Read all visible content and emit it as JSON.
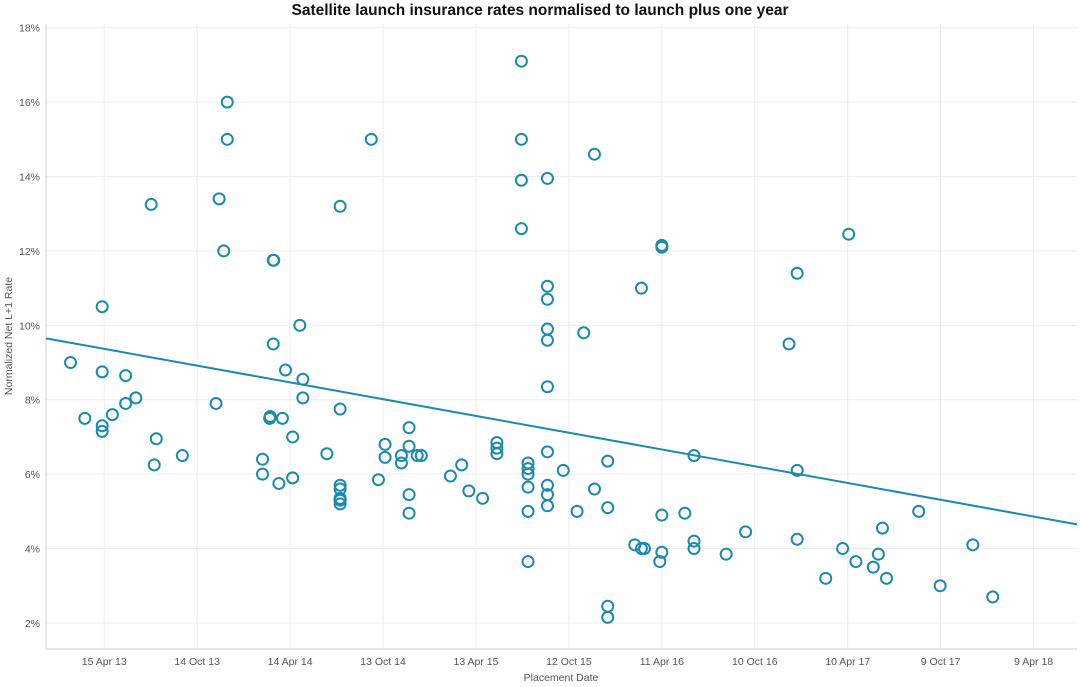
{
  "chart_data": {
    "type": "scatter",
    "title": "Satellite launch insurance rates normalised to launch plus one year",
    "xlabel": "Placement Date",
    "ylabel": "Normalized Net L+1 Rate",
    "x_unit": "days since 15 Apr 13",
    "xlim": [
      -114,
      1905
    ],
    "ylim": [
      1.3,
      18.1
    ],
    "x_ticks": [
      {
        "label": "15 Apr 13",
        "value": 0
      },
      {
        "label": "14 Oct 13",
        "value": 182
      },
      {
        "label": "14 Apr 14",
        "value": 364
      },
      {
        "label": "13 Oct 14",
        "value": 546
      },
      {
        "label": "13 Apr 15",
        "value": 728
      },
      {
        "label": "12 Oct 15",
        "value": 910
      },
      {
        "label": "11 Apr 16",
        "value": 1092
      },
      {
        "label": "10 Oct 16",
        "value": 1274
      },
      {
        "label": "10 Apr 17",
        "value": 1456
      },
      {
        "label": "9 Oct 17",
        "value": 1638
      },
      {
        "label": "9 Apr 18",
        "value": 1820
      }
    ],
    "y_ticks": [
      {
        "label": "2%",
        "value": 2
      },
      {
        "label": "4%",
        "value": 4
      },
      {
        "label": "6%",
        "value": 6
      },
      {
        "label": "8%",
        "value": 8
      },
      {
        "label": "10%",
        "value": 10
      },
      {
        "label": "12%",
        "value": 12
      },
      {
        "label": "14%",
        "value": 14
      },
      {
        "label": "16%",
        "value": 16
      },
      {
        "label": "18%",
        "value": 18
      }
    ],
    "trend_line": {
      "x": [
        -114,
        1905
      ],
      "y": [
        9.65,
        4.65
      ]
    },
    "points": [
      [
        -66,
        9.0
      ],
      [
        -38,
        7.5
      ],
      [
        -4,
        10.5
      ],
      [
        -4,
        8.75
      ],
      [
        -4,
        7.3
      ],
      [
        -4,
        7.15
      ],
      [
        16,
        7.6
      ],
      [
        42,
        8.65
      ],
      [
        42,
        7.9
      ],
      [
        62,
        8.05
      ],
      [
        92,
        13.25
      ],
      [
        102,
        6.95
      ],
      [
        98,
        6.25
      ],
      [
        153,
        6.5
      ],
      [
        219,
        7.9
      ],
      [
        225,
        13.4
      ],
      [
        234,
        12.0
      ],
      [
        241,
        16.0
      ],
      [
        241,
        15.0
      ],
      [
        310,
        6.4
      ],
      [
        310,
        6.0
      ],
      [
        324,
        7.5
      ],
      [
        325,
        7.55
      ],
      [
        331,
        9.5
      ],
      [
        331,
        11.75
      ],
      [
        332,
        11.75
      ],
      [
        342,
        5.75
      ],
      [
        349,
        7.5
      ],
      [
        355,
        8.8
      ],
      [
        369,
        7.0
      ],
      [
        369,
        5.9
      ],
      [
        383,
        10.0
      ],
      [
        389,
        8.55
      ],
      [
        389,
        8.05
      ],
      [
        436,
        6.55
      ],
      [
        462,
        13.2
      ],
      [
        462,
        7.75
      ],
      [
        462,
        5.7
      ],
      [
        462,
        5.6
      ],
      [
        462,
        5.35
      ],
      [
        462,
        5.3
      ],
      [
        462,
        5.2
      ],
      [
        523,
        15.0
      ],
      [
        537,
        5.85
      ],
      [
        550,
        6.8
      ],
      [
        550,
        6.45
      ],
      [
        582,
        6.5
      ],
      [
        582,
        6.3
      ],
      [
        597,
        7.25
      ],
      [
        597,
        6.75
      ],
      [
        597,
        5.45
      ],
      [
        597,
        4.95
      ],
      [
        613,
        6.5
      ],
      [
        621,
        6.5
      ],
      [
        678,
        5.95
      ],
      [
        700,
        6.25
      ],
      [
        714,
        5.55
      ],
      [
        741,
        5.35
      ],
      [
        769,
        6.85
      ],
      [
        769,
        6.7
      ],
      [
        769,
        6.55
      ],
      [
        817,
        17.1
      ],
      [
        817,
        15.0
      ],
      [
        817,
        13.9
      ],
      [
        817,
        12.6
      ],
      [
        830,
        6.3
      ],
      [
        830,
        6.0
      ],
      [
        830,
        6.15
      ],
      [
        830,
        5.65
      ],
      [
        830,
        5.0
      ],
      [
        830,
        3.65
      ],
      [
        868,
        13.95
      ],
      [
        868,
        11.05
      ],
      [
        868,
        10.7
      ],
      [
        868,
        9.9
      ],
      [
        868,
        9.6
      ],
      [
        868,
        8.35
      ],
      [
        868,
        6.6
      ],
      [
        868,
        5.7
      ],
      [
        868,
        5.45
      ],
      [
        868,
        5.15
      ],
      [
        899,
        6.1
      ],
      [
        926,
        5.0
      ],
      [
        939,
        9.8
      ],
      [
        960,
        14.6
      ],
      [
        960,
        5.6
      ],
      [
        986,
        6.35
      ],
      [
        986,
        5.1
      ],
      [
        986,
        2.45
      ],
      [
        986,
        2.15
      ],
      [
        1039,
        4.1
      ],
      [
        1052,
        4.0
      ],
      [
        1058,
        4.0
      ],
      [
        1052,
        11.0
      ],
      [
        1092,
        12.15
      ],
      [
        1092,
        12.1
      ],
      [
        1092,
        4.9
      ],
      [
        1092,
        3.9
      ],
      [
        1088,
        3.65
      ],
      [
        1137,
        4.95
      ],
      [
        1155,
        6.5
      ],
      [
        1155,
        4.2
      ],
      [
        1155,
        4.0
      ],
      [
        1218,
        3.85
      ],
      [
        1256,
        4.45
      ],
      [
        1341,
        9.5
      ],
      [
        1357,
        11.4
      ],
      [
        1357,
        6.1
      ],
      [
        1357,
        4.25
      ],
      [
        1413,
        3.2
      ],
      [
        1446,
        4.0
      ],
      [
        1458,
        12.45
      ],
      [
        1472,
        3.65
      ],
      [
        1506,
        3.5
      ],
      [
        1516,
        3.85
      ],
      [
        1524,
        4.55
      ],
      [
        1532,
        3.2
      ],
      [
        1595,
        5.0
      ],
      [
        1637,
        3.0
      ],
      [
        1701,
        4.1
      ],
      [
        1740,
        2.7
      ]
    ]
  }
}
